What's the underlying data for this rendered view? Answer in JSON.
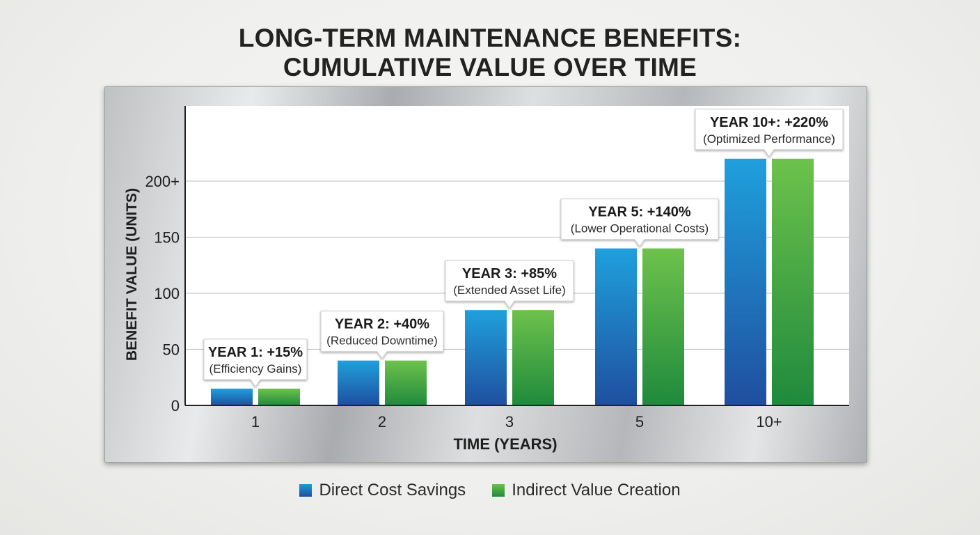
{
  "chart_data": {
    "type": "bar",
    "title_lines": [
      "LONG-TERM MAINTENANCE BENEFITS:",
      "CUMULATIVE VALUE OVER TIME"
    ],
    "xlabel": "TIME (YEARS)",
    "ylabel": "BENEFIT VALUE (UNITS)",
    "categories": [
      "1",
      "2",
      "3",
      "5",
      "10+"
    ],
    "yticks": [
      {
        "value": 0,
        "label": "0"
      },
      {
        "value": 50,
        "label": "50"
      },
      {
        "value": 100,
        "label": "100"
      },
      {
        "value": 150,
        "label": "150"
      },
      {
        "value": 200,
        "label": "200+"
      }
    ],
    "ylim": [
      0,
      200
    ],
    "grid": true,
    "legend_position": "bottom-center",
    "series": [
      {
        "name": "Direct Cost Savings",
        "values": [
          15,
          40,
          85,
          140,
          220
        ],
        "color_top": "#1fa0dc",
        "color_bottom": "#1f4f9f"
      },
      {
        "name": "Indirect Value Creation",
        "values": [
          15,
          40,
          85,
          140,
          220
        ],
        "color_top": "#6dc24b",
        "color_bottom": "#1f8a3d"
      }
    ],
    "annotations": [
      {
        "category": "1",
        "headline": "YEAR 1: +15%",
        "note": "(Efficiency Gains)"
      },
      {
        "category": "2",
        "headline": "YEAR 2: +40%",
        "note": "(Reduced Downtime)"
      },
      {
        "category": "3",
        "headline": "YEAR 3: +85%",
        "note": "(Extended Asset Life)"
      },
      {
        "category": "5",
        "headline": "YEAR 5: +140%",
        "note": "(Lower Operational Costs)"
      },
      {
        "category": "10+",
        "headline": "YEAR 10+: +220%",
        "note": "(Optimized Performance)"
      }
    ]
  }
}
